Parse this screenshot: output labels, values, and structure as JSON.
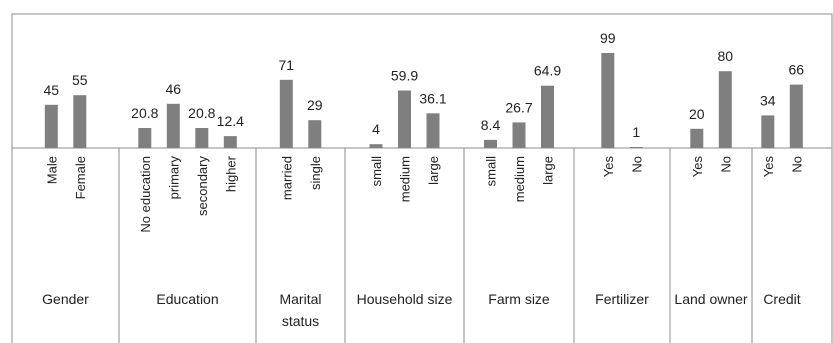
{
  "chart_data": {
    "type": "bar",
    "title": "",
    "xlabel": "",
    "ylabel": "",
    "ylim": [
      0,
      100
    ],
    "bar_color": "#7f7f7f",
    "groups": [
      {
        "label_lines": [
          "Gender"
        ],
        "categories": [
          "Male",
          "Female"
        ],
        "values": [
          45,
          55
        ],
        "value_labels": [
          "45",
          "55"
        ]
      },
      {
        "label_lines": [
          "Education"
        ],
        "categories": [
          "No education",
          "primary",
          "secondary",
          "higher"
        ],
        "values": [
          20.8,
          46,
          20.8,
          12.4
        ],
        "value_labels": [
          "20.8",
          "46",
          "20.8",
          "12.4"
        ]
      },
      {
        "label_lines": [
          "Marital",
          "status"
        ],
        "categories": [
          "married",
          "single"
        ],
        "values": [
          71,
          29
        ],
        "value_labels": [
          "71",
          "29"
        ]
      },
      {
        "label_lines": [
          "Household size"
        ],
        "categories": [
          "small",
          "medium",
          "large"
        ],
        "values": [
          4,
          59.9,
          36.1
        ],
        "value_labels": [
          "4",
          "59.9",
          "36.1"
        ]
      },
      {
        "label_lines": [
          "Farm size"
        ],
        "categories": [
          "small",
          "medium",
          "large"
        ],
        "values": [
          8.4,
          26.7,
          64.9
        ],
        "value_labels": [
          "8.4",
          "26.7",
          "64.9"
        ]
      },
      {
        "label_lines": [
          "Fertilizer"
        ],
        "categories": [
          "Yes",
          "No"
        ],
        "values": [
          99,
          1
        ],
        "value_labels": [
          "99",
          "1"
        ]
      },
      {
        "label_lines": [
          "Land owner"
        ],
        "categories": [
          "Yes",
          "No"
        ],
        "values": [
          20,
          80
        ],
        "value_labels": [
          "20",
          "80"
        ]
      },
      {
        "label_lines": [
          "Credit"
        ],
        "categories": [
          "Yes",
          "No"
        ],
        "values": [
          34,
          66
        ],
        "value_labels": [
          "34",
          "66"
        ]
      }
    ]
  }
}
